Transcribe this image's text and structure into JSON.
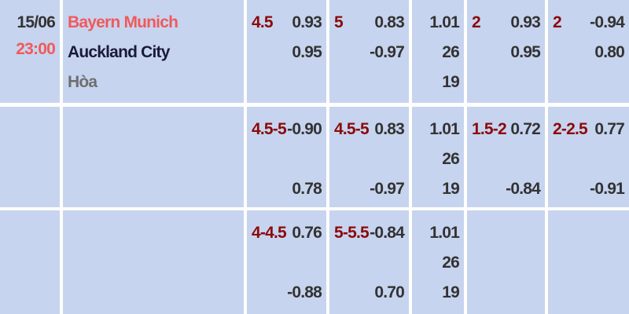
{
  "match": {
    "date": "15/06",
    "time": "23:00",
    "home": "Bayern Munich",
    "away": "Auckland City",
    "draw": "Hòa"
  },
  "colors": {
    "cell_bg": "#c7d4ef",
    "home": "#f05a5a",
    "away": "#1a1a3a",
    "draw": "#6e6e6e",
    "time": "#f05a5a",
    "line": "#8b0a0a",
    "value": "#333333"
  },
  "rows": [
    {
      "cells": [
        {
          "line": "4.5",
          "home": "0.93",
          "away": "0.95"
        },
        {
          "line": "5",
          "home": "0.83",
          "away": "-0.97"
        },
        {
          "x12": [
            "1.01",
            "26",
            "19"
          ]
        },
        {
          "line": "2",
          "home": "0.93",
          "away": "0.95"
        },
        {
          "line": "2",
          "home": "-0.94",
          "away": "0.80"
        }
      ]
    },
    {
      "cells": [
        {
          "line": "4.5-5",
          "home": "-0.90",
          "away": "0.78"
        },
        {
          "line": "4.5-5",
          "home": "0.83",
          "away": "-0.97"
        },
        {
          "x12": [
            "1.01",
            "26",
            "19"
          ]
        },
        {
          "line": "1.5-2",
          "home": "0.72",
          "away": "-0.84"
        },
        {
          "line": "2-2.5",
          "home": "0.77",
          "away": "-0.91"
        }
      ]
    },
    {
      "cells": [
        {
          "line": "4-4.5",
          "home": "0.76",
          "away": "-0.88"
        },
        {
          "line": "5-5.5",
          "home": "-0.84",
          "away": "0.70"
        },
        {
          "x12": [
            "1.01",
            "26",
            "19"
          ]
        },
        {},
        {}
      ]
    }
  ]
}
